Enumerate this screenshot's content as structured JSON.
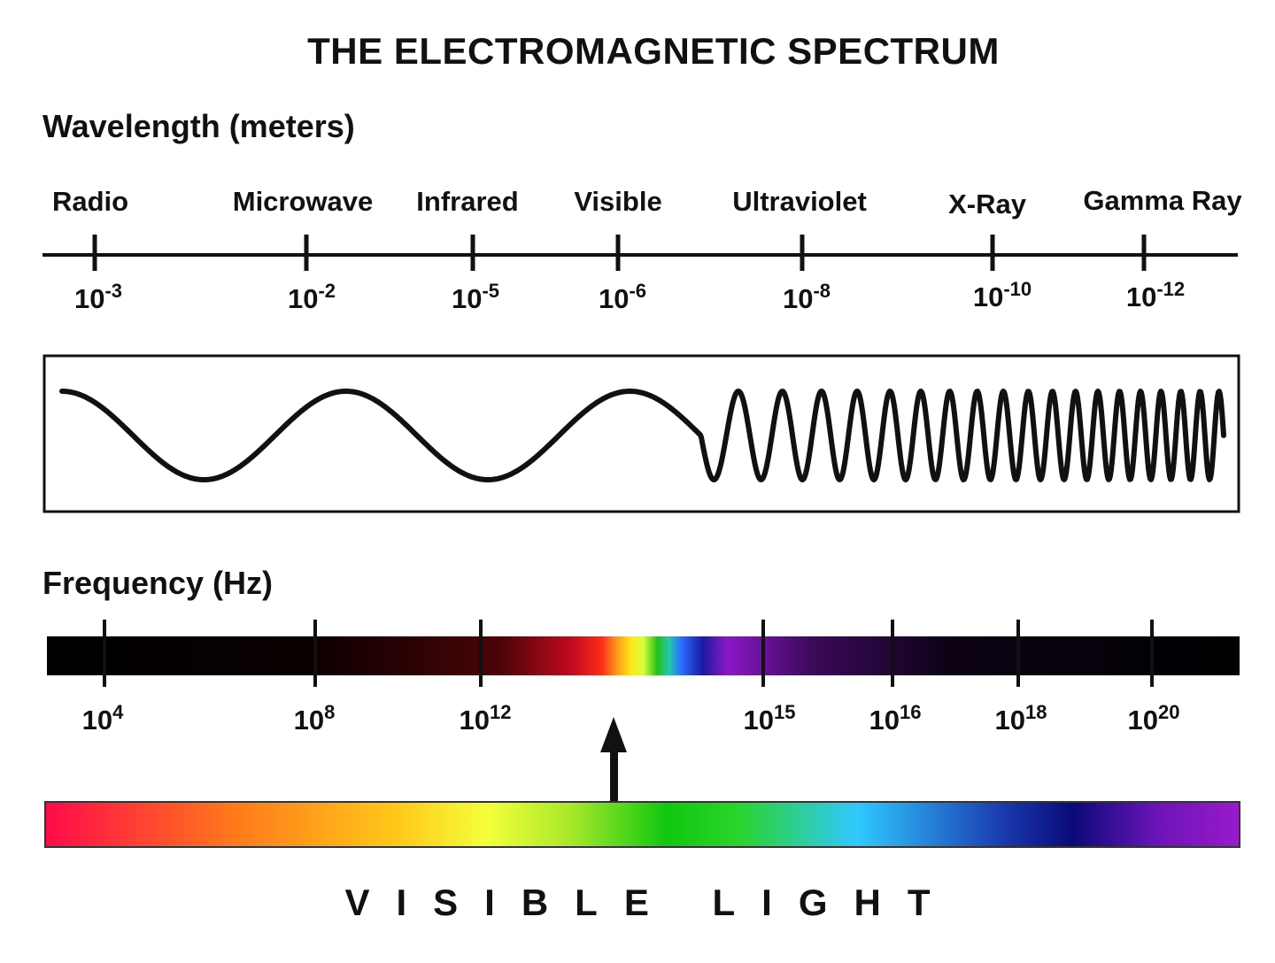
{
  "title": "THE ELECTROMAGNETIC SPECTRUM",
  "wavelength": {
    "heading": "Wavelength (meters)",
    "bands": [
      {
        "name": "Radio",
        "base": "10",
        "exp": "-3"
      },
      {
        "name": "Microwave",
        "base": "10",
        "exp": "-2"
      },
      {
        "name": "Infrared",
        "base": "10",
        "exp": "-5"
      },
      {
        "name": "Visible",
        "base": "10",
        "exp": "-6"
      },
      {
        "name": "Ultraviolet",
        "base": "10",
        "exp": "-8"
      },
      {
        "name": "X-Ray",
        "base": "10",
        "exp": "-10"
      },
      {
        "name": "Gamma Ray",
        "base": "10",
        "exp": "-12"
      }
    ]
  },
  "frequency": {
    "heading": "Frequency (Hz)",
    "ticks": [
      {
        "base": "10",
        "exp": "4"
      },
      {
        "base": "10",
        "exp": "8"
      },
      {
        "base": "10",
        "exp": "12"
      },
      {
        "base": "10",
        "exp": "15"
      },
      {
        "base": "10",
        "exp": "16"
      },
      {
        "base": "10",
        "exp": "18"
      },
      {
        "base": "10",
        "exp": "20"
      }
    ]
  },
  "visible_light_label": "VISIBLE LIGHT",
  "colors": {
    "ink": "#111111",
    "spectrum": [
      "#ff0040",
      "#ff7a1a",
      "#ffd21a",
      "#eeff33",
      "#33cc1a",
      "#10d010",
      "#33c8ff",
      "#0a0a80",
      "#8a14cc",
      "#9a1acc"
    ]
  }
}
